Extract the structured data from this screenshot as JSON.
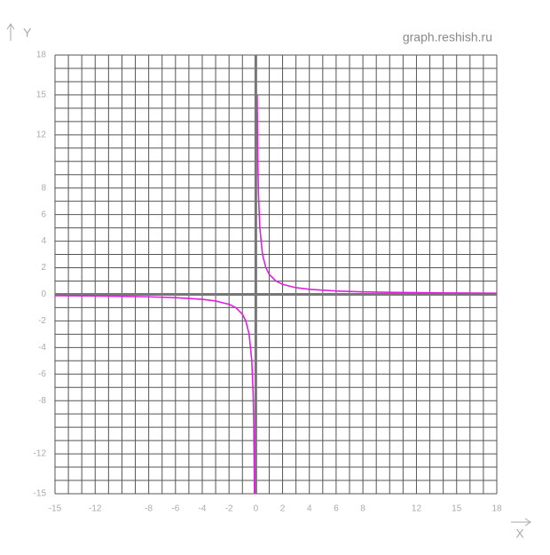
{
  "chart_data": {
    "type": "line",
    "watermark": "graph.reshish.ru",
    "x_label": "X",
    "y_label": "Y",
    "x": [
      -15,
      -12,
      -10,
      -8,
      -6,
      -4,
      -3,
      -2,
      -1.5,
      -1,
      -0.75,
      -0.5,
      -0.3,
      -0.2,
      -0.15,
      -0.1,
      0,
      0.1,
      0.15,
      0.2,
      0.3,
      0.5,
      0.75,
      1,
      1.5,
      2,
      3,
      4,
      6,
      8,
      10,
      12,
      15,
      18
    ],
    "series": [
      {
        "color": "#e020e0",
        "values": [
          -0.1,
          -0.125,
          -0.15,
          -0.1875,
          -0.25,
          -0.375,
          -0.5,
          -0.75,
          -1,
          -1.5,
          -2,
          -3,
          -5,
          -7.5,
          -10,
          -15,
          null,
          15,
          10,
          7.5,
          5,
          3,
          2,
          1.5,
          1,
          0.75,
          0.5,
          0.375,
          0.25,
          0.1875,
          0.15,
          0.125,
          0.1,
          0.083
        ]
      }
    ],
    "xlim": [
      -15,
      18
    ],
    "ylim": [
      -15,
      18
    ],
    "xticks": [
      -15,
      -12,
      -8,
      -6,
      -4,
      -2,
      0,
      2,
      4,
      6,
      8,
      12,
      15,
      18
    ],
    "yticks": [
      -15,
      -12,
      -8,
      -6,
      -4,
      -2,
      0,
      2,
      4,
      6,
      8,
      12,
      15,
      18
    ],
    "grid": true
  }
}
